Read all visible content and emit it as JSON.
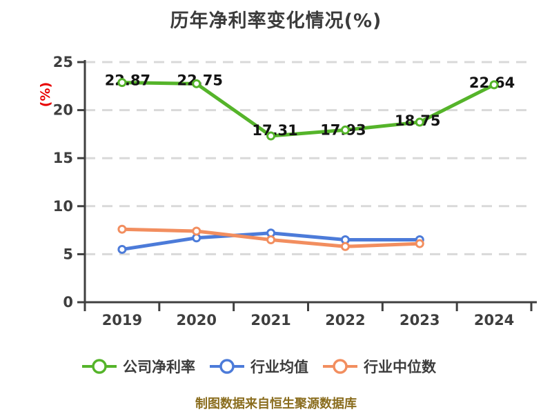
{
  "title": "历年净利率变化情况(%)",
  "y_axis_unit_label": "(%)",
  "footer_note": "制图数据来自恒生聚源数据库",
  "colors": {
    "title_text": "#3b3b3b",
    "axis": "#3f3f3f",
    "gridline": "#d9d9d9",
    "y_unit_label": "#e80000",
    "footer_text": "#8a6d1e",
    "data_label": "#141414",
    "company_series": "#55b42a",
    "industry_mean_series": "#4c7bd9",
    "industry_median_series": "#f28e5f"
  },
  "chart_data": {
    "type": "line",
    "title": "历年净利率变化情况(%)",
    "categories": [
      "2019",
      "2020",
      "2021",
      "2022",
      "2023",
      "2024"
    ],
    "series": [
      {
        "name": "公司净利率",
        "color": "#55b42a",
        "values": [
          22.87,
          22.75,
          17.31,
          17.93,
          18.75,
          22.64
        ],
        "point_labels": [
          "22.87",
          "22.75",
          "17.31",
          "17.93",
          "18.75",
          "22.64"
        ]
      },
      {
        "name": "行业均值",
        "color": "#4c7bd9",
        "values": [
          5.5,
          6.7,
          7.2,
          6.5,
          6.5
        ],
        "point_labels": []
      },
      {
        "name": "行业中位数",
        "color": "#f28e5f",
        "values": [
          7.6,
          7.4,
          6.5,
          5.8,
          6.1
        ],
        "point_labels": []
      }
    ],
    "xlabel": "",
    "ylabel": "(%)",
    "ylim": [
      0,
      25
    ],
    "yticks": [
      0,
      5,
      10,
      15,
      20,
      25
    ],
    "grid": "horizontal-dashed",
    "legend_position": "bottom",
    "marker_style": "white-filled-circle"
  }
}
